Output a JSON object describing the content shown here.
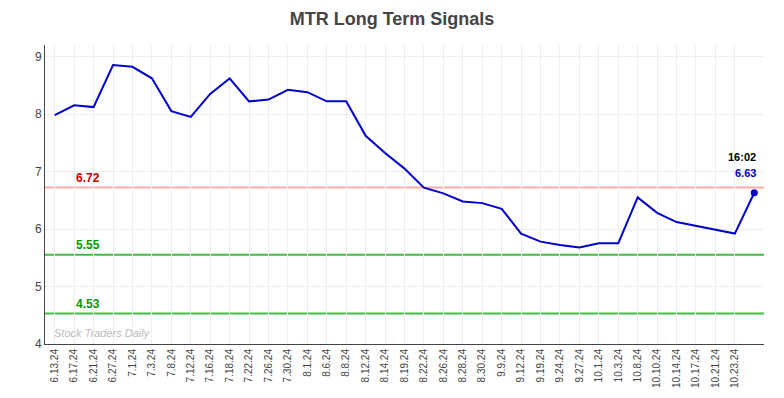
{
  "chart_data": {
    "type": "line",
    "title": "MTR Long Term Signals",
    "categories": [
      "6.13.24",
      "6.17.24",
      "6.21.24",
      "6.27.24",
      "7.1.24",
      "7.3.24",
      "7.8.24",
      "7.12.24",
      "7.16.24",
      "7.18.24",
      "7.22.24",
      "7.26.24",
      "7.30.24",
      "8.1.24",
      "8.6.24",
      "8.8.24",
      "8.12.24",
      "8.14.24",
      "8.19.24",
      "8.22.24",
      "8.26.24",
      "8.28.24",
      "8.30.24",
      "9.9.24",
      "9.12.24",
      "9.19.24",
      "9.24.24",
      "9.27.24",
      "10.1.24",
      "10.3.24",
      "10.8.24",
      "10.10.24",
      "10.14.24",
      "10.17.24",
      "10.21.24",
      "10.23.24",
      null
    ],
    "values": [
      7.98,
      8.15,
      8.12,
      8.85,
      8.82,
      8.62,
      8.05,
      7.95,
      8.35,
      8.62,
      8.22,
      8.25,
      8.42,
      8.38,
      8.22,
      8.22,
      7.62,
      7.32,
      7.05,
      6.72,
      6.62,
      6.48,
      6.45,
      6.35,
      5.92,
      5.78,
      5.72,
      5.68,
      5.75,
      5.75,
      6.55,
      6.28,
      6.12,
      6.05,
      5.98,
      5.92,
      6.63
    ],
    "color": "#0000cc",
    "hlines": [
      {
        "value": 6.72,
        "color": "#ffaaaa",
        "label": "6.72",
        "label_color": "#cc0000"
      },
      {
        "value": 5.55,
        "color": "#44bb44",
        "label": "5.55",
        "label_color": "#009900"
      },
      {
        "value": 4.53,
        "color": "#44bb44",
        "label": "4.53",
        "label_color": "#009900"
      }
    ],
    "end_labels": [
      {
        "text": "16:02",
        "color": "#000000"
      },
      {
        "text": "6.63",
        "color": "#0000cc"
      }
    ],
    "watermark": {
      "text": "Stock Traders Daily",
      "color": "#bbbbbb"
    },
    "ylim": [
      4.0,
      9.2
    ],
    "yticks": [
      4,
      5,
      6,
      7,
      8,
      9
    ],
    "grid": true
  }
}
